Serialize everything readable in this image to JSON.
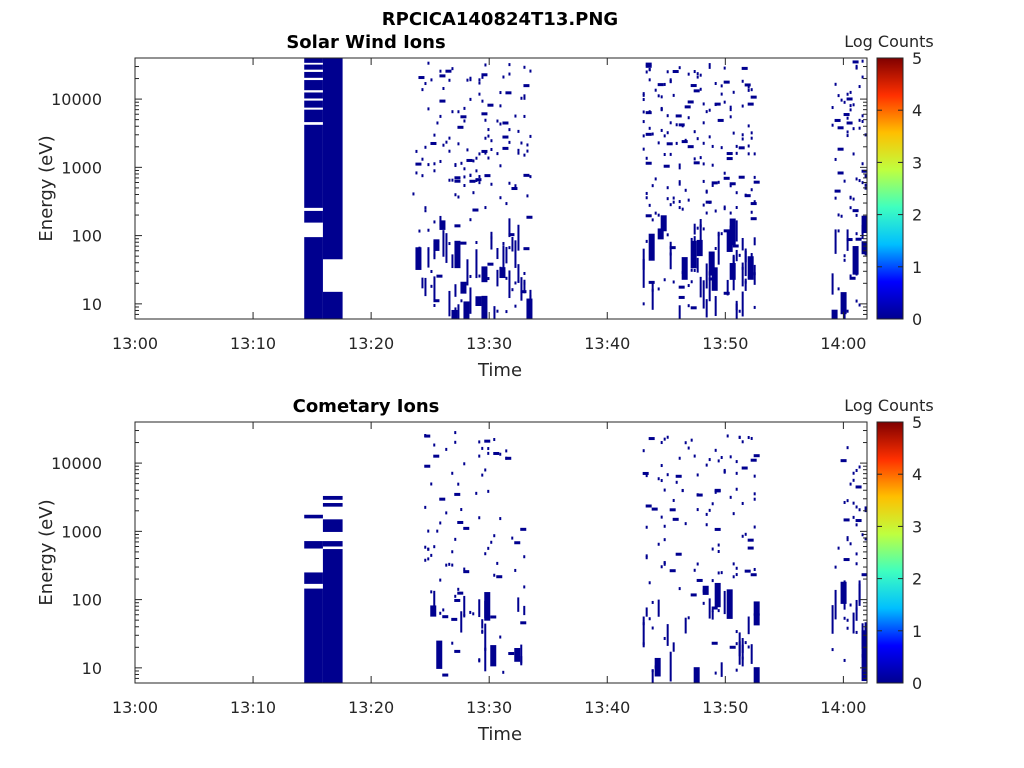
{
  "figure_title": "RPCICA140824T13.PNG",
  "colorbar_colors": [
    "#00008f",
    "#0000ff",
    "#00bfff",
    "#3fffbf",
    "#bfff3f",
    "#ffbf00",
    "#ff3000",
    "#800000"
  ],
  "chart_data": [
    {
      "type": "heatmap",
      "title": "Solar Wind Ions",
      "xlabel": "Time",
      "ylabel": "Energy (eV)",
      "x_ticks": [
        "13:00",
        "13:10",
        "13:20",
        "13:30",
        "13:40",
        "13:50",
        "14:00"
      ],
      "y_ticks": [
        "10",
        "100",
        "1000",
        "10000"
      ],
      "y_scale": "log",
      "ylim": [
        6,
        40000
      ],
      "xlim": [
        "13:00",
        "14:02"
      ],
      "colorbar": {
        "label": "Log Counts",
        "ticks": [
          "0",
          "1",
          "2",
          "3",
          "4",
          "5"
        ],
        "range": [
          0,
          5
        ],
        "colormap": "jet"
      },
      "value": 0,
      "blocks": [
        {
          "t0": "13:14:20",
          "t1": "13:15:55",
          "e0": 6,
          "e1": 40000,
          "gaps": [
            [
              32000,
              34000
            ],
            [
              25000,
              27000
            ],
            [
              19000,
              20500
            ],
            [
              12500,
              13500
            ],
            [
              9500,
              10200
            ],
            [
              7000,
              7500
            ],
            [
              4200,
              4600
            ],
            [
              230,
              255
            ],
            [
              95,
              155
            ]
          ]
        },
        {
          "t0": "13:15:55",
          "t1": "13:17:35",
          "e0": 6,
          "e1": 40000,
          "gaps": [
            [
              15,
              45
            ]
          ]
        }
      ],
      "scatter_regions": [
        {
          "t0": "13:23:30",
          "t1": "13:33:30",
          "e_min": 8,
          "e_max": 38000,
          "density": 0.12
        },
        {
          "t0": "13:43:00",
          "t1": "13:52:30",
          "e_min": 8,
          "e_max": 38000,
          "density": 0.16
        },
        {
          "t0": "13:59:00",
          "t1": "14:01:50",
          "e_min": 8,
          "e_max": 38000,
          "density": 0.16
        }
      ]
    },
    {
      "type": "heatmap",
      "title": "Cometary Ions",
      "xlabel": "Time",
      "ylabel": "Energy (eV)",
      "x_ticks": [
        "13:00",
        "13:10",
        "13:20",
        "13:30",
        "13:40",
        "13:50",
        "14:00"
      ],
      "y_ticks": [
        "10",
        "100",
        "1000",
        "10000"
      ],
      "y_scale": "log",
      "ylim": [
        6,
        40000
      ],
      "xlim": [
        "13:00",
        "14:02"
      ],
      "colorbar": {
        "label": "Log Counts",
        "ticks": [
          "0",
          "1",
          "2",
          "3",
          "4",
          "5"
        ],
        "range": [
          0,
          5
        ],
        "colormap": "jet"
      },
      "value": 0,
      "blocks": [
        {
          "t0": "13:14:20",
          "t1": "13:15:55",
          "e0": 6,
          "e1": 250,
          "gaps": [
            [
              145,
              170
            ]
          ]
        },
        {
          "t0": "13:14:20",
          "t1": "13:15:55",
          "e0": 560,
          "e1": 720,
          "gaps": []
        },
        {
          "t0": "13:14:20",
          "t1": "13:15:55",
          "e0": 1550,
          "e1": 1750,
          "gaps": []
        },
        {
          "t0": "13:15:55",
          "t1": "13:17:35",
          "e0": 6,
          "e1": 3300,
          "gaps": [
            [
              2600,
              2900
            ],
            [
              1500,
              2300
            ],
            [
              720,
              980
            ],
            [
              550,
              600
            ]
          ]
        }
      ],
      "scatter_regions": [
        {
          "t0": "13:24:30",
          "t1": "13:33:00",
          "e_min": 8,
          "e_max": 30000,
          "density": 0.07
        },
        {
          "t0": "13:43:00",
          "t1": "13:52:30",
          "e_min": 8,
          "e_max": 30000,
          "density": 0.1
        },
        {
          "t0": "13:59:00",
          "t1": "14:01:50",
          "e_min": 8,
          "e_max": 20000,
          "density": 0.1
        }
      ]
    }
  ]
}
